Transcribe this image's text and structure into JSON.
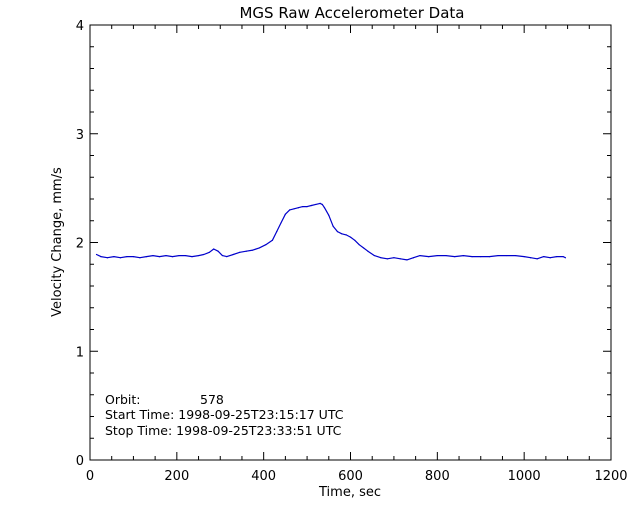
{
  "chart_data": {
    "type": "line",
    "title": "MGS Raw Accelerometer Data",
    "xlabel": "Time, sec",
    "ylabel": "Velocity Change, mm/s",
    "xlim": [
      0,
      1200
    ],
    "ylim": [
      0,
      4
    ],
    "xticks": [
      0,
      200,
      400,
      600,
      800,
      1000,
      1200
    ],
    "yticks": [
      0,
      1,
      2,
      3,
      4
    ],
    "xtick_labels": [
      "0",
      "200",
      "400",
      "600",
      "800",
      "1000",
      "1200"
    ],
    "ytick_labels": [
      "0",
      "1",
      "2",
      "3",
      "4"
    ],
    "grid": false,
    "line_color": "#0000cc",
    "series": [
      {
        "x": [
          15,
          25,
          40,
          55,
          70,
          85,
          100,
          115,
          130,
          145,
          160,
          175,
          190,
          205,
          220,
          235,
          250,
          262,
          275,
          285,
          295,
          305,
          315,
          330,
          345,
          360,
          375,
          390,
          405,
          420,
          430,
          440,
          450,
          460,
          470,
          480,
          490,
          500,
          510,
          520,
          530,
          535,
          540,
          550,
          560,
          570,
          580,
          590,
          600,
          610,
          620,
          630,
          640,
          655,
          670,
          685,
          700,
          715,
          730,
          745,
          760,
          780,
          800,
          820,
          840,
          860,
          880,
          900,
          920,
          940,
          960,
          980,
          1000,
          1015,
          1030,
          1045,
          1060,
          1075,
          1090,
          1095
        ],
        "y": [
          1.89,
          1.87,
          1.86,
          1.87,
          1.86,
          1.87,
          1.87,
          1.86,
          1.87,
          1.88,
          1.87,
          1.88,
          1.87,
          1.88,
          1.88,
          1.87,
          1.88,
          1.89,
          1.91,
          1.94,
          1.92,
          1.88,
          1.87,
          1.89,
          1.91,
          1.92,
          1.93,
          1.95,
          1.98,
          2.02,
          2.1,
          2.18,
          2.26,
          2.3,
          2.31,
          2.32,
          2.33,
          2.33,
          2.34,
          2.35,
          2.36,
          2.35,
          2.32,
          2.25,
          2.15,
          2.1,
          2.08,
          2.07,
          2.05,
          2.02,
          1.98,
          1.95,
          1.92,
          1.88,
          1.86,
          1.85,
          1.86,
          1.85,
          1.84,
          1.86,
          1.88,
          1.87,
          1.88,
          1.88,
          1.87,
          1.88,
          1.87,
          1.87,
          1.87,
          1.88,
          1.88,
          1.88,
          1.87,
          1.86,
          1.85,
          1.87,
          1.86,
          1.87,
          1.87,
          1.86
        ]
      }
    ],
    "annotations": {
      "orbit_label": "Orbit:",
      "orbit_value": "578",
      "start_time": "Start Time: 1998-09-25T23:15:17 UTC",
      "stop_time": "Stop Time: 1998-09-25T23:33:51 UTC"
    }
  }
}
